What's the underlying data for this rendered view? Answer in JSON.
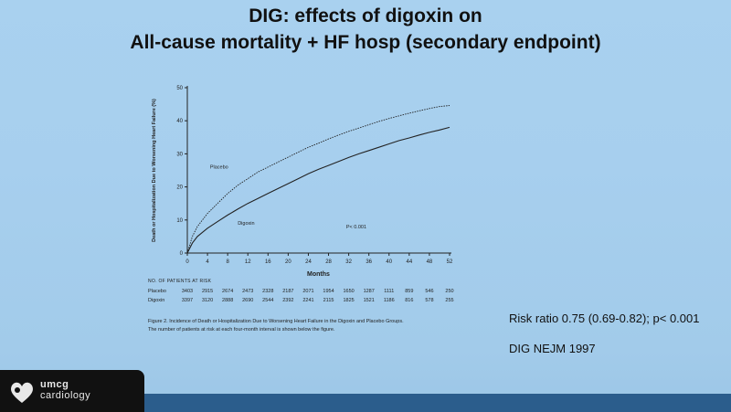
{
  "slide": {
    "title_line1": "DIG: effects of digoxin on",
    "title_line2": "All-cause mortality + HF hosp (secondary endpoint)",
    "risk_ratio": "Risk ratio 0.75 (0.69-0.82); p< 0.001",
    "citation": "DIG   NEJM 1997"
  },
  "chart_data": {
    "type": "line",
    "ylabel": "Death or Hospitalization Due to Worsening Heart Failure (%)",
    "xlabel": "Months",
    "xlim": [
      0,
      52
    ],
    "ylim": [
      0,
      50
    ],
    "x_ticks": [
      0,
      4,
      8,
      12,
      16,
      20,
      24,
      28,
      32,
      36,
      40,
      44,
      48,
      52
    ],
    "y_ticks": [
      0,
      10,
      20,
      30,
      40,
      50
    ],
    "grid": false,
    "annotation": "P< 0.001",
    "series": [
      {
        "name": "Placebo",
        "style": "dashed",
        "x": [
          0,
          1,
          2,
          4,
          6,
          8,
          10,
          12,
          14,
          16,
          18,
          20,
          22,
          24,
          26,
          28,
          30,
          32,
          34,
          36,
          38,
          40,
          42,
          44,
          46,
          48,
          50,
          52
        ],
        "y": [
          0,
          5,
          8,
          12,
          15,
          18,
          20.5,
          22.5,
          24.5,
          26,
          27.5,
          29,
          30.5,
          32,
          33.2,
          34.5,
          35.7,
          36.8,
          37.8,
          38.8,
          39.8,
          40.7,
          41.5,
          42.3,
          43,
          43.7,
          44.3,
          44.6
        ]
      },
      {
        "name": "Digoxin",
        "style": "solid",
        "x": [
          0,
          1,
          2,
          4,
          6,
          8,
          10,
          12,
          14,
          16,
          18,
          20,
          22,
          24,
          26,
          28,
          30,
          32,
          34,
          36,
          38,
          40,
          42,
          44,
          46,
          48,
          50,
          52
        ],
        "y": [
          0,
          3,
          5,
          7.5,
          9.5,
          11.5,
          13.3,
          15,
          16.5,
          18,
          19.5,
          21,
          22.5,
          24,
          25.3,
          26.5,
          27.7,
          28.9,
          30,
          31,
          32,
          33,
          34,
          34.8,
          35.7,
          36.5,
          37.2,
          38
        ]
      }
    ]
  },
  "risk_table": {
    "header": "NO. OF PATIENTS AT RISK",
    "rows": [
      {
        "label": "Placebo",
        "values": [
          "3403",
          "2915",
          "2674",
          "2473",
          "2328",
          "2187",
          "2071",
          "1954",
          "1650",
          "1287",
          "1111",
          "859",
          "546",
          "250"
        ]
      },
      {
        "label": "Digoxin",
        "values": [
          "3397",
          "3120",
          "2888",
          "2690",
          "2544",
          "2392",
          "2241",
          "2115",
          "1825",
          "1521",
          "1186",
          "816",
          "578",
          "255"
        ]
      }
    ]
  },
  "caption": {
    "figure_text": "Figure 2. Incidence of Death or Hospitalization Due to Worsening Heart Failure in the Digoxin and Placebo Groups.",
    "note": "The number of patients at risk at each four-month interval is shown below the figure."
  },
  "logo": {
    "line1": "umcg",
    "line2": "cardiology"
  }
}
